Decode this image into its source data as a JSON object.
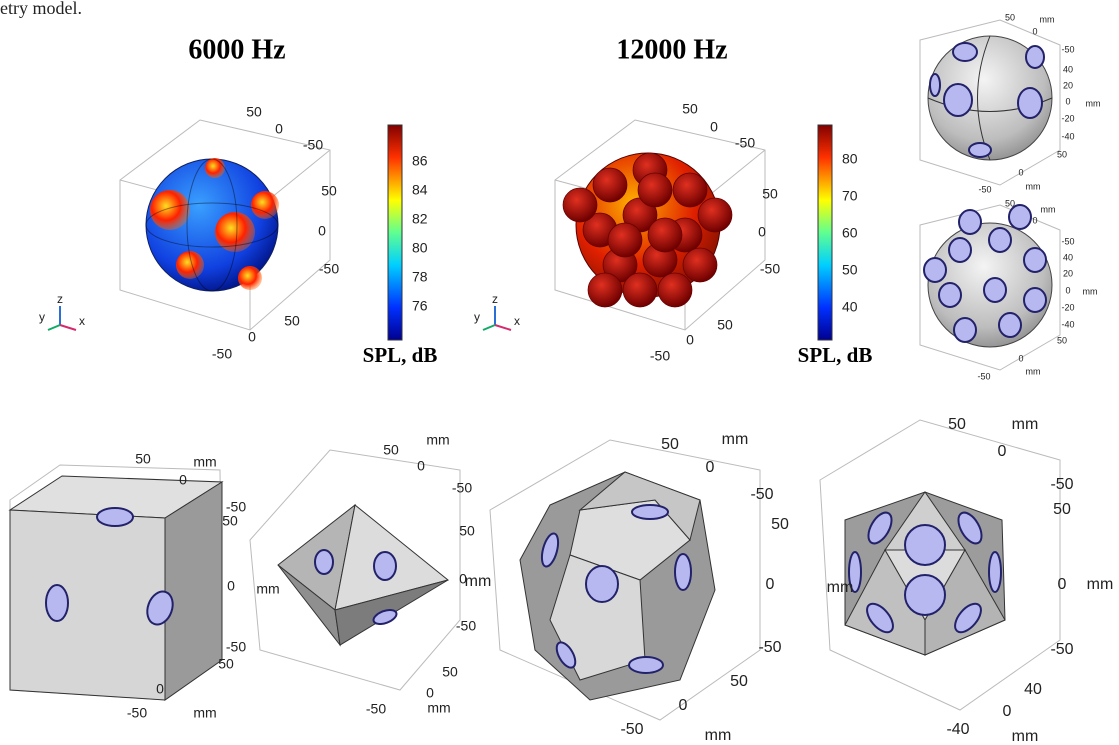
{
  "caption_fragment": "etry model.",
  "spl_plots": [
    {
      "title": "6000 Hz",
      "axis_labels": [
        "50",
        "0",
        "-50",
        "50",
        "0",
        "-50",
        "50",
        "0",
        "-50"
      ],
      "triad": [
        "y",
        "z",
        "x"
      ],
      "colorbar": {
        "ticks": [
          "86",
          "84",
          "82",
          "80",
          "78",
          "76"
        ],
        "label": "SPL, dB"
      }
    },
    {
      "title": "12000 Hz",
      "axis_labels": [
        "50",
        "0",
        "-50",
        "50",
        "0",
        "-50",
        "50",
        "0",
        "-50"
      ],
      "triad": [
        "y",
        "z",
        "x"
      ],
      "colorbar": {
        "ticks": [
          "80",
          "70",
          "60",
          "50",
          "40"
        ],
        "label": "SPL, dB"
      }
    }
  ],
  "sphere_plots": [
    {
      "axis_labels": [
        "50",
        "mm",
        "0",
        "-50",
        "40",
        "20",
        "0",
        "mm",
        "-20",
        "-40",
        "50",
        "0",
        "mm",
        "-50"
      ]
    },
    {
      "axis_labels": [
        "50",
        "mm",
        "0",
        "-50",
        "40",
        "20",
        "0",
        "mm",
        "-20",
        "-40",
        "50",
        "0",
        "mm",
        "-50"
      ]
    }
  ],
  "geometry_plots": [
    {
      "axis_labels": [
        "50",
        "mm",
        "0",
        "-50",
        "50",
        "0",
        "-50",
        "50",
        "0",
        "-50",
        "mm"
      ]
    },
    {
      "axis_labels": [
        "50",
        "mm",
        "0",
        "-50",
        "50",
        "mm",
        "0",
        "-50",
        "50",
        "0",
        "-50",
        "mm"
      ]
    },
    {
      "axis_labels": [
        "50",
        "mm",
        "0",
        "-50",
        "50",
        "mm",
        "0",
        "-50",
        "50",
        "0",
        "-50",
        "mm"
      ]
    },
    {
      "axis_labels": [
        "50",
        "mm",
        "0",
        "-50",
        "50",
        "mm",
        "0",
        "mm",
        "-50",
        "40",
        "0",
        "-40",
        "mm"
      ]
    }
  ]
}
